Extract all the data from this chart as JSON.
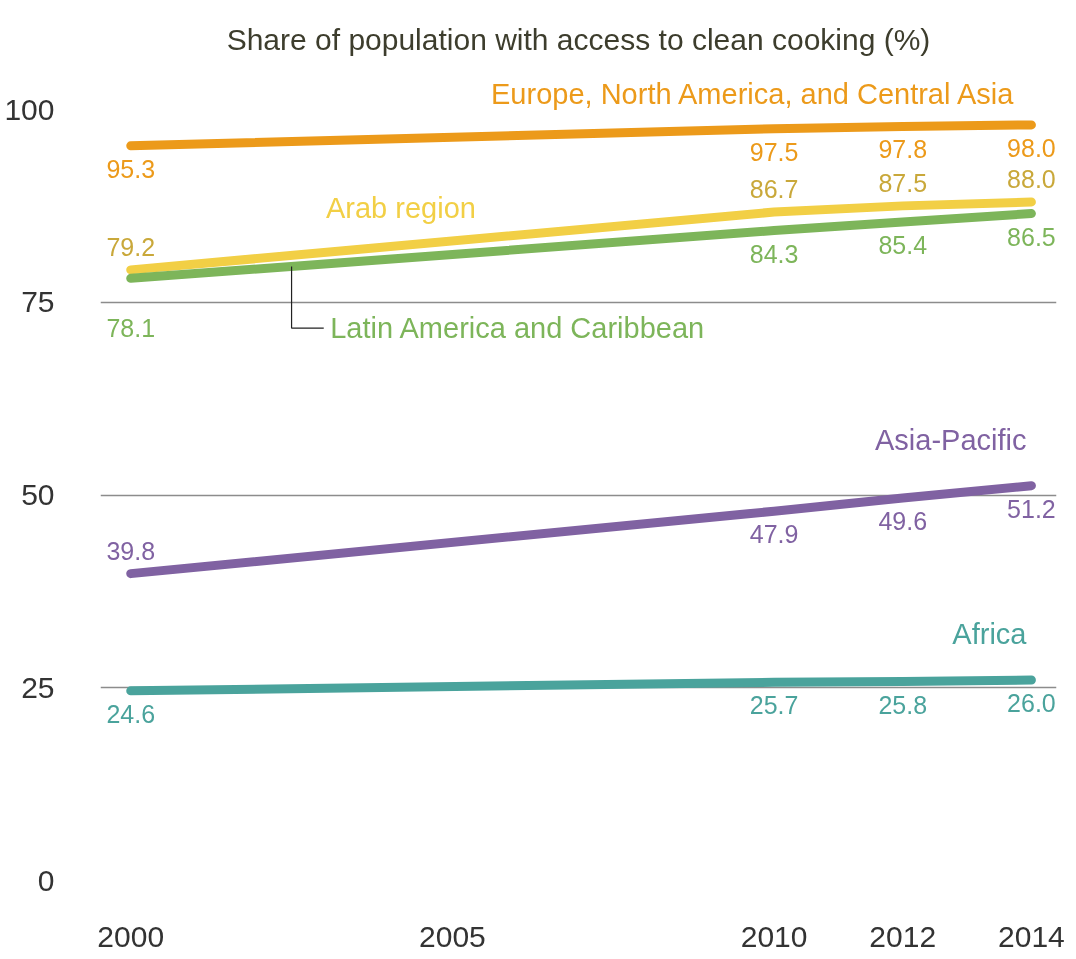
{
  "chart_data": {
    "type": "line",
    "title": "Share of population with access to clean cooking (%)",
    "x": [
      2000,
      2010,
      2012,
      2014
    ],
    "xlim": [
      1999.53,
      2014.39
    ],
    "xticks": [
      2000,
      2005,
      2010,
      2012,
      2014
    ],
    "ylim": [
      0,
      100
    ],
    "yticks": [
      0,
      25,
      50,
      75,
      100
    ],
    "grid": "y",
    "marker": "none",
    "line_style": "solid",
    "series": [
      {
        "name": "Europe, North America, and Central Asia",
        "color": "#ec9a1a",
        "values": [
          95.3,
          97.5,
          97.8,
          98.0
        ],
        "value_labels": [
          "95.3",
          "97.5",
          "97.8",
          "98.0"
        ]
      },
      {
        "name": "Arab region",
        "color": "#f2cf45",
        "values": [
          79.2,
          86.7,
          87.5,
          88.0
        ],
        "value_labels": [
          "79.2",
          "86.7",
          "87.5",
          "88.0"
        ]
      },
      {
        "name": "Latin America and Caribbean",
        "color": "#7db55a",
        "values": [
          78.1,
          84.3,
          85.4,
          86.5
        ],
        "value_labels": [
          "78.1",
          "84.3",
          "85.4",
          "86.5"
        ]
      },
      {
        "name": "Asia-Pacific",
        "color": "#8062a2",
        "values": [
          39.8,
          47.9,
          49.6,
          51.2
        ],
        "value_labels": [
          "39.8",
          "47.9",
          "49.6",
          "51.2"
        ]
      },
      {
        "name": "Africa",
        "color": "#4aa39c",
        "values": [
          24.6,
          25.7,
          25.8,
          26.0
        ],
        "value_labels": [
          "24.6",
          "25.7",
          "25.8",
          "26.0"
        ]
      }
    ]
  }
}
